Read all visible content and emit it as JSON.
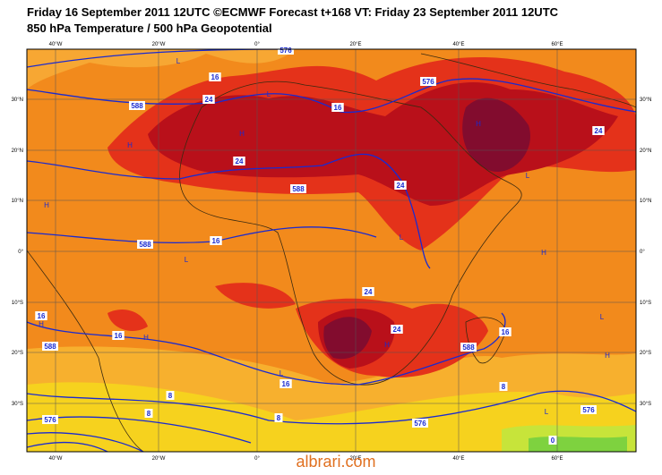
{
  "header": {
    "title": "Friday 16 September 2011 12UTC ©ECMWF Forecast t+168 VT: Friday 23 September 2011 12UTC",
    "subtitle": "850 hPa Temperature / 500 hPa Geopotential"
  },
  "lon_labels": [
    "40°W",
    "20°W",
    "0°",
    "20°E",
    "40°E",
    "60°E"
  ],
  "lat_labels": [
    "30°N",
    "20°N",
    "10°N",
    "0°",
    "10°S",
    "20°S",
    "30°S"
  ],
  "contour_labels": [
    "16",
    "24",
    "16",
    "588",
    "24",
    "16",
    "588",
    "24",
    "588",
    "24",
    "576",
    "576",
    "16",
    "16",
    "24",
    "24",
    "588",
    "16",
    "16",
    "8",
    "8",
    "8",
    "8",
    "576",
    "576",
    "576",
    "0",
    "588"
  ],
  "pressure_centers": [
    "L",
    "L",
    "H",
    "H",
    "H",
    "H",
    "H",
    "L",
    "L",
    "H",
    "L",
    "L",
    "H",
    "H",
    "L",
    "L",
    "H"
  ],
  "watermark": "albrari.com"
}
